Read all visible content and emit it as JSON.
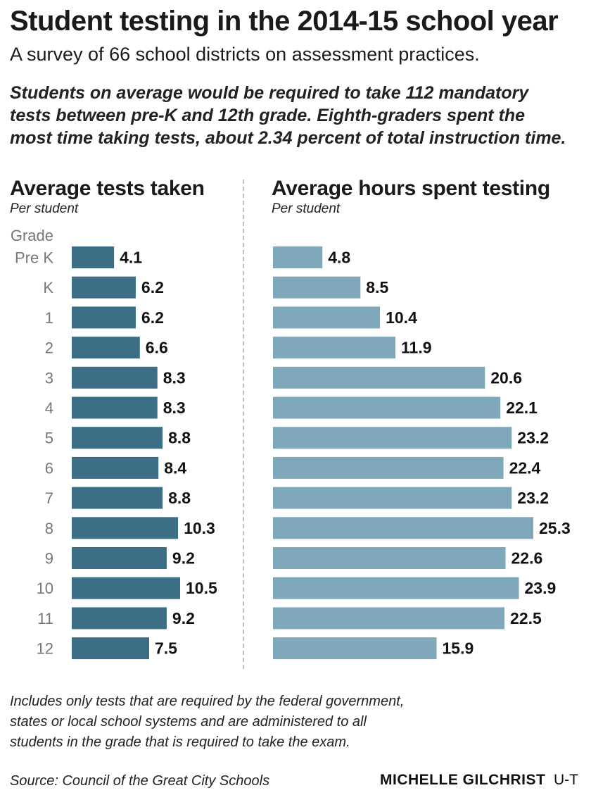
{
  "title": "Student testing in the 2014-15 school year",
  "subtitle": "A survey of 66 school districts on assessment practices.",
  "intro_lines": [
    "Students on average would be required to take 112 mandatory",
    "tests between pre-K and 12th grade. Eighth-graders spent the",
    "most time taking tests, about 2.34 percent of total instruction time."
  ],
  "footnote_lines": [
    "Includes only tests that are required by the federal government,",
    "states or local school systems and are administered to all",
    "students in the grade that is required to take the exam."
  ],
  "source": "Source: Council of the Great City Schools",
  "credit": {
    "name": "MICHELLE GILCHRIST",
    "org": "U-T"
  },
  "colors": {
    "tests_bar": "#3c6f86",
    "hours_bar": "#7fa9bb"
  },
  "chart_data": [
    {
      "type": "bar",
      "orientation": "horizontal",
      "title": "Average tests taken",
      "subtitle": "Per student",
      "category_axis_title": "Grade",
      "categories": [
        "Pre K",
        "K",
        "1",
        "2",
        "3",
        "4",
        "5",
        "6",
        "7",
        "8",
        "9",
        "10",
        "11",
        "12"
      ],
      "values": [
        4.1,
        6.2,
        6.2,
        6.6,
        8.3,
        8.3,
        8.8,
        8.4,
        8.8,
        10.3,
        9.2,
        10.5,
        9.2,
        7.5
      ],
      "value_labels": [
        "4.1",
        "6.2",
        "6.2",
        "6.6",
        "8.3",
        "8.3",
        "8.8",
        "8.4",
        "8.8",
        "10.3",
        "9.2",
        "10.5",
        "9.2",
        "7.5"
      ],
      "xlim": [
        0,
        10.5
      ],
      "grid": false,
      "legend": "none"
    },
    {
      "type": "bar",
      "orientation": "horizontal",
      "title": "Average hours spent testing",
      "subtitle": "Per student",
      "categories": [
        "Pre K",
        "K",
        "1",
        "2",
        "3",
        "4",
        "5",
        "6",
        "7",
        "8",
        "9",
        "10",
        "11",
        "12"
      ],
      "values": [
        4.8,
        8.5,
        10.4,
        11.9,
        20.6,
        22.1,
        23.2,
        22.4,
        23.2,
        25.3,
        22.6,
        23.9,
        22.5,
        15.9
      ],
      "value_labels": [
        "4.8",
        "8.5",
        "10.4",
        "11.9",
        "20.6",
        "22.1",
        "23.2",
        "22.4",
        "23.2",
        "25.3",
        "22.6",
        "23.9",
        "22.5",
        "15.9"
      ],
      "xlim": [
        0,
        25.3
      ],
      "grid": false,
      "legend": "none"
    }
  ]
}
